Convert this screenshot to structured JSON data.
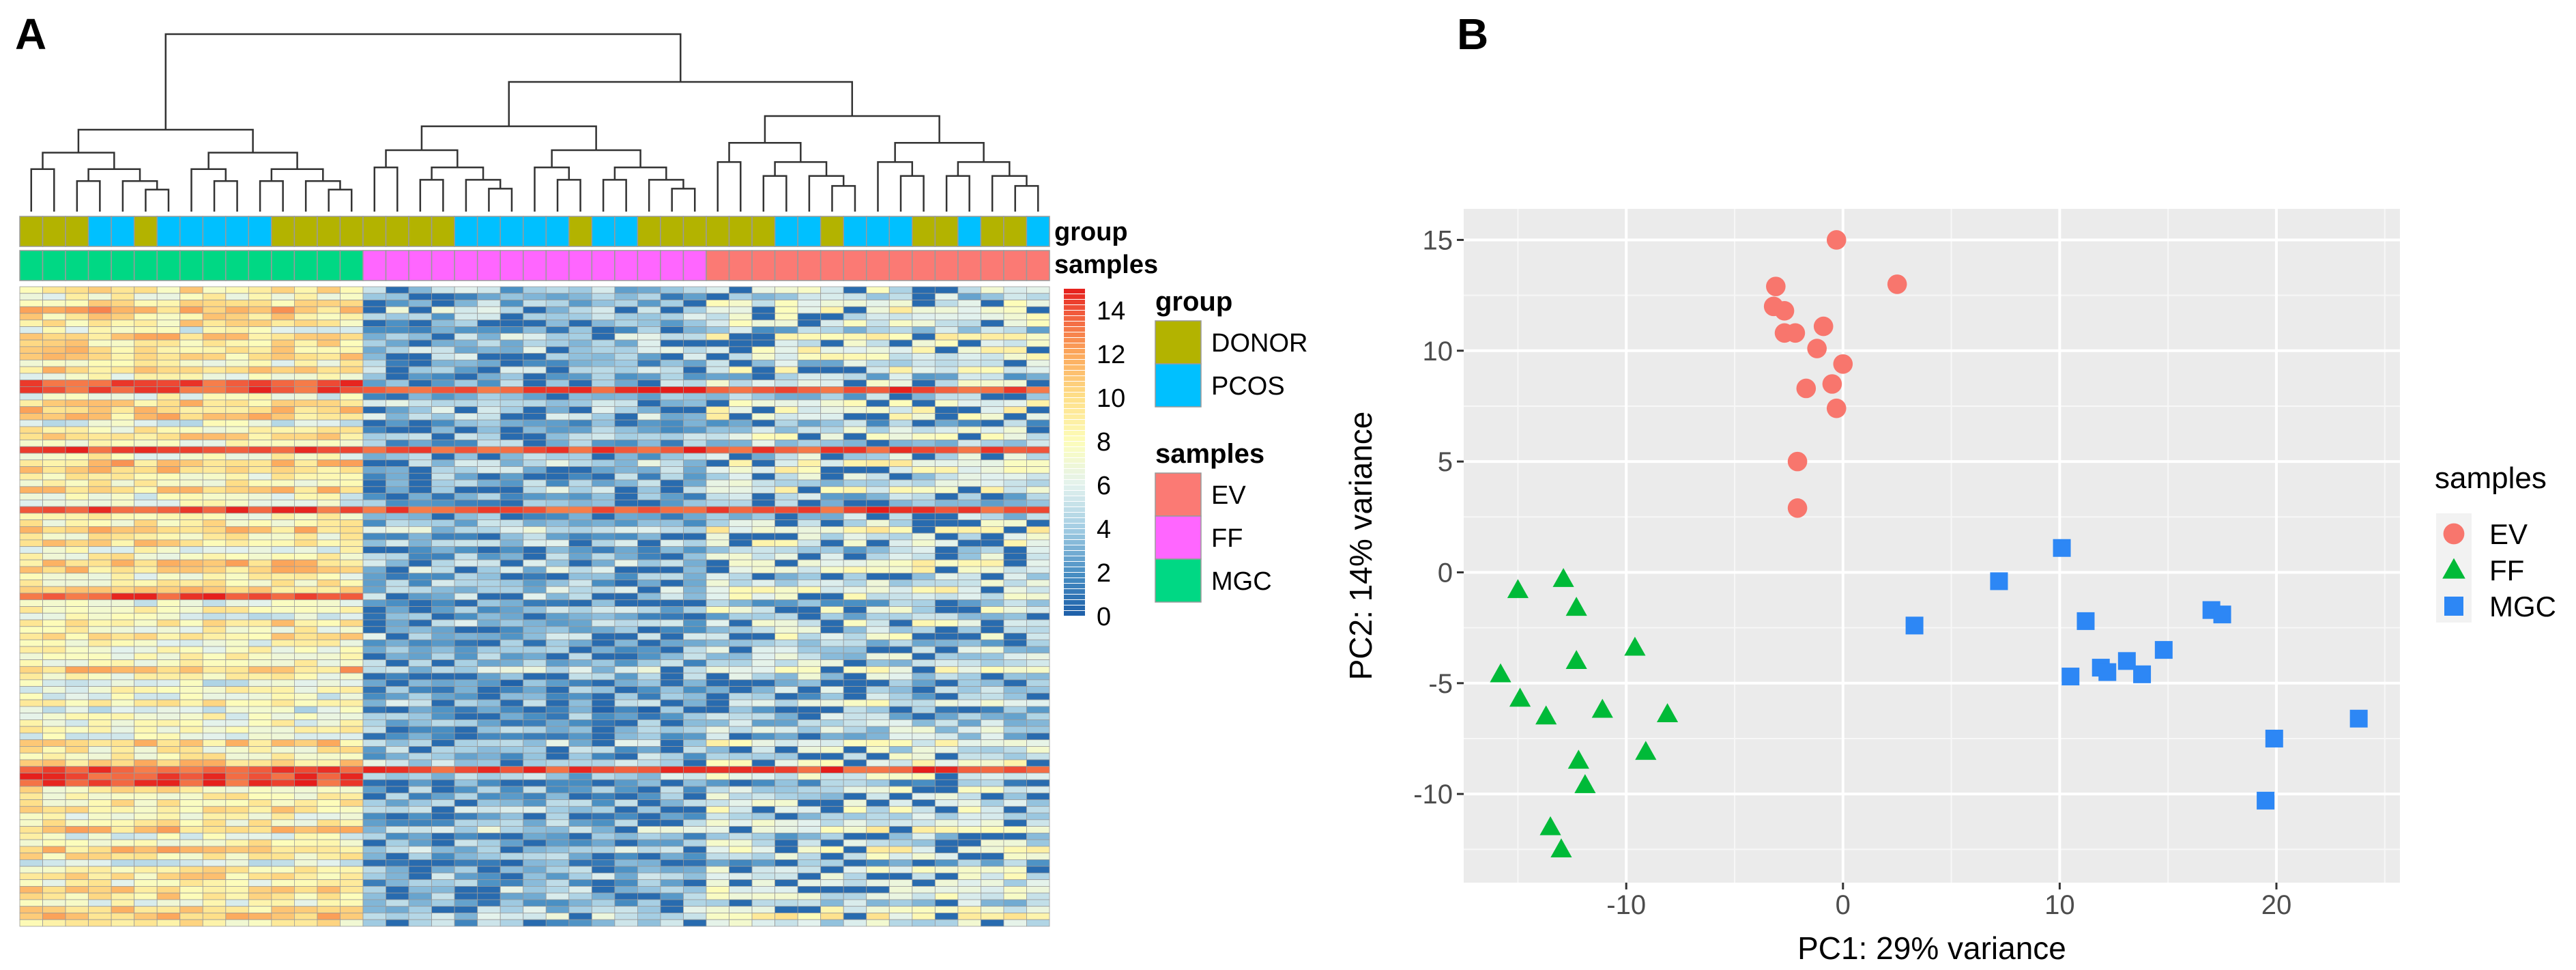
{
  "panels": {
    "a_label": "A",
    "b_label": "B"
  },
  "chart_data": [
    {
      "type": "heatmap",
      "title": "",
      "annotation_labels": {
        "group": "group",
        "samples": "samples"
      },
      "columns": {
        "group": [
          "DONOR",
          "DONOR",
          "DONOR",
          "PCOS",
          "PCOS",
          "DONOR",
          "PCOS",
          "PCOS",
          "PCOS",
          "PCOS",
          "PCOS",
          "DONOR",
          "DONOR",
          "DONOR",
          "DONOR",
          "DONOR",
          "DONOR",
          "DONOR",
          "DONOR",
          "PCOS",
          "PCOS",
          "PCOS",
          "PCOS",
          "PCOS",
          "DONOR",
          "PCOS",
          "PCOS",
          "DONOR",
          "DONOR",
          "DONOR",
          "DONOR",
          "DONOR",
          "DONOR",
          "PCOS",
          "PCOS",
          "DONOR",
          "PCOS",
          "PCOS",
          "PCOS",
          "DONOR",
          "DONOR",
          "PCOS",
          "DONOR",
          "DONOR",
          "PCOS"
        ],
        "samples": [
          "MGC",
          "MGC",
          "MGC",
          "MGC",
          "MGC",
          "MGC",
          "MGC",
          "MGC",
          "MGC",
          "MGC",
          "MGC",
          "MGC",
          "MGC",
          "MGC",
          "MGC",
          "FF",
          "FF",
          "FF",
          "FF",
          "FF",
          "FF",
          "FF",
          "FF",
          "FF",
          "FF",
          "FF",
          "FF",
          "FF",
          "FF",
          "FF",
          "EV",
          "EV",
          "EV",
          "EV",
          "EV",
          "EV",
          "EV",
          "EV",
          "EV",
          "EV",
          "EV",
          "EV",
          "EV",
          "EV",
          "EV"
        ]
      },
      "n_rows": 96,
      "group_mean_levels": {
        "MGC": 8.5,
        "FF": 3.5,
        "EV": 5.5
      },
      "color_scale": {
        "range": [
          0,
          15
        ],
        "ticks": [
          "0",
          "2",
          "4",
          "6",
          "8",
          "10",
          "12",
          "14"
        ],
        "stops": [
          [
            0,
            "#1c5ea8"
          ],
          [
            2,
            "#4a90c4"
          ],
          [
            4,
            "#a3cde3"
          ],
          [
            6,
            "#e3f2ee"
          ],
          [
            8,
            "#fdfdbb"
          ],
          [
            10,
            "#fee08a"
          ],
          [
            12,
            "#fca95c"
          ],
          [
            14,
            "#f0553a"
          ],
          [
            15,
            "#e51c1a"
          ]
        ]
      },
      "legend": {
        "group_title": "group",
        "group_items": [
          {
            "label": "DONOR",
            "color": "#b3b300"
          },
          {
            "label": "PCOS",
            "color": "#00c0ff"
          }
        ],
        "samples_title": "samples",
        "samples_items": [
          {
            "label": "EV",
            "color": "#fb7a74"
          },
          {
            "label": "FF",
            "color": "#ff66ff"
          },
          {
            "label": "MGC",
            "color": "#00d884"
          }
        ]
      }
    },
    {
      "type": "scatter",
      "title": "",
      "xlabel": "PC1: 29% variance",
      "ylabel": "PC2: 14% variance",
      "xlim": [
        -17.5,
        25.7
      ],
      "ylim": [
        -14,
        16.4
      ],
      "xticks": [
        -10,
        0,
        10,
        20
      ],
      "yticks": [
        -10,
        -5,
        0,
        5,
        10,
        15
      ],
      "grid": true,
      "legend_title": "samples",
      "legend_position": "right",
      "series": [
        {
          "name": "EV",
          "marker": "circle",
          "color": "#f8766d",
          "points": [
            [
              -0.3,
              15
            ],
            [
              2.5,
              13
            ],
            [
              -3.1,
              12.9
            ],
            [
              -3.2,
              12
            ],
            [
              -2.7,
              11.8
            ],
            [
              -2.7,
              10.8
            ],
            [
              -2.2,
              10.8
            ],
            [
              -0.9,
              11.1
            ],
            [
              -1.2,
              10.1
            ],
            [
              0,
              9.4
            ],
            [
              -1.7,
              8.3
            ],
            [
              -0.5,
              8.5
            ],
            [
              -0.3,
              7.4
            ],
            [
              -2.1,
              5
            ],
            [
              -2.1,
              2.9
            ]
          ]
        },
        {
          "name": "FF",
          "marker": "triangle",
          "color": "#00ba38",
          "points": [
            [
              -15,
              -0.8
            ],
            [
              -12.9,
              -0.3
            ],
            [
              -12.3,
              -1.6
            ],
            [
              -9.6,
              -3.4
            ],
            [
              -12.3,
              -4
            ],
            [
              -15.8,
              -4.6
            ],
            [
              -14.9,
              -5.7
            ],
            [
              -13.7,
              -6.5
            ],
            [
              -11.1,
              -6.2
            ],
            [
              -8.1,
              -6.4
            ],
            [
              -9.1,
              -8.1
            ],
            [
              -12.2,
              -8.5
            ],
            [
              -11.9,
              -9.6
            ],
            [
              -13.5,
              -11.5
            ],
            [
              -13,
              -12.5
            ]
          ]
        },
        {
          "name": "MGC",
          "marker": "square",
          "color": "#2d87f5",
          "points": [
            [
              3.3,
              -2.4
            ],
            [
              7.2,
              -0.4
            ],
            [
              10.1,
              1.1
            ],
            [
              11.2,
              -2.2
            ],
            [
              10.5,
              -4.7
            ],
            [
              11.9,
              -4.3
            ],
            [
              12.2,
              -4.5
            ],
            [
              13.1,
              -4
            ],
            [
              13.8,
              -4.6
            ],
            [
              14.8,
              -3.5
            ],
            [
              17,
              -1.7
            ],
            [
              17.5,
              -1.9
            ],
            [
              19.5,
              -10.3
            ],
            [
              19.9,
              -7.5
            ],
            [
              23.8,
              -6.6
            ]
          ]
        }
      ]
    }
  ]
}
